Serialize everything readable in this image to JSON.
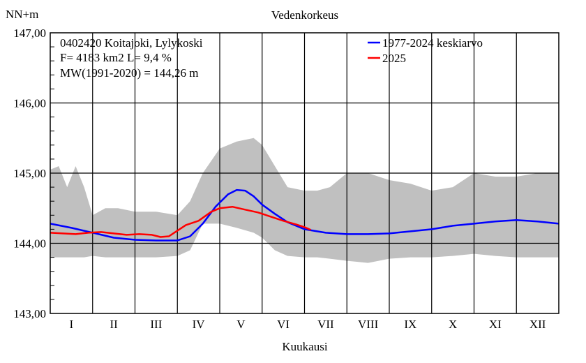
{
  "chart_data": {
    "type": "line",
    "title": "Vedenkorkeus",
    "ylabel": "NN+m",
    "xlabel": "Kuukausi",
    "ylim": [
      143.0,
      147.0
    ],
    "yticks": [
      "143,00",
      "144,00",
      "145,00",
      "146,00",
      "147,00"
    ],
    "yticks_values": [
      143,
      144,
      145,
      146,
      147
    ],
    "months": [
      "I",
      "II",
      "III",
      "IV",
      "V",
      "VI",
      "VII",
      "VIII",
      "IX",
      "X",
      "XI",
      "XII"
    ],
    "info": [
      "0402420 Koitajoki, Lylykoski",
      "F=   4183 km2 L=  9,4 %",
      "MW(1991-2020) = 144,26 m"
    ],
    "legend": [
      {
        "label": "1977-2024 keskiarvo",
        "color": "#0000ff"
      },
      {
        "label": "2025",
        "color": "#ff0000"
      }
    ],
    "band": {
      "color": "#c0c0c0",
      "x_month": [
        0.0,
        0.2,
        0.4,
        0.6,
        0.8,
        1.0,
        1.3,
        1.6,
        2.0,
        2.5,
        3.0,
        3.3,
        3.6,
        4.0,
        4.4,
        4.8,
        5.0,
        5.3,
        5.6,
        6.0,
        6.3,
        6.6,
        7.0,
        7.5,
        8.0,
        8.5,
        9.0,
        9.5,
        10.0,
        10.5,
        11.0,
        11.5,
        12.0
      ],
      "upper": [
        145.05,
        145.1,
        144.8,
        145.1,
        144.8,
        144.4,
        144.5,
        144.5,
        144.45,
        144.45,
        144.4,
        144.6,
        145.0,
        145.35,
        145.45,
        145.5,
        145.4,
        145.1,
        144.8,
        144.75,
        144.75,
        144.8,
        145.0,
        145.0,
        144.9,
        144.85,
        144.75,
        144.8,
        145.0,
        144.95,
        144.95,
        145.0,
        145.0
      ],
      "lower": [
        143.8,
        143.8,
        143.8,
        143.8,
        143.8,
        143.82,
        143.8,
        143.8,
        143.8,
        143.8,
        143.82,
        143.9,
        144.28,
        144.28,
        144.22,
        144.15,
        144.08,
        143.9,
        143.82,
        143.8,
        143.8,
        143.78,
        143.75,
        143.72,
        143.78,
        143.8,
        143.8,
        143.82,
        143.85,
        143.82,
        143.8,
        143.8,
        143.8
      ]
    },
    "series": [
      {
        "name": "1977-2024 keskiarvo",
        "color": "#0000ff",
        "x_month": [
          0.0,
          0.5,
          1.0,
          1.5,
          2.0,
          2.5,
          3.0,
          3.3,
          3.6,
          3.9,
          4.2,
          4.4,
          4.6,
          4.8,
          5.0,
          5.3,
          5.6,
          6.0,
          6.5,
          7.0,
          7.5,
          8.0,
          8.5,
          9.0,
          9.5,
          10.0,
          10.5,
          11.0,
          11.5,
          12.0
        ],
        "values": [
          144.28,
          144.22,
          144.15,
          144.08,
          144.05,
          144.04,
          144.04,
          144.1,
          144.28,
          144.52,
          144.7,
          144.76,
          144.75,
          144.67,
          144.55,
          144.42,
          144.3,
          144.2,
          144.15,
          144.13,
          144.13,
          144.14,
          144.17,
          144.2,
          144.25,
          144.28,
          144.31,
          144.33,
          144.31,
          144.28
        ]
      },
      {
        "name": "2025",
        "color": "#ff0000",
        "x_month": [
          0.0,
          0.3,
          0.6,
          0.9,
          1.2,
          1.5,
          1.8,
          2.1,
          2.4,
          2.6,
          2.8,
          3.0,
          3.2,
          3.5,
          3.8,
          4.0,
          4.3,
          4.6,
          4.9,
          5.2,
          5.5,
          5.8,
          6.0,
          6.15
        ],
        "values": [
          144.15,
          144.14,
          144.13,
          144.15,
          144.16,
          144.14,
          144.12,
          144.13,
          144.12,
          144.09,
          144.1,
          144.18,
          144.26,
          144.32,
          144.45,
          144.5,
          144.52,
          144.48,
          144.44,
          144.38,
          144.32,
          144.27,
          144.23,
          144.19
        ]
      }
    ]
  }
}
